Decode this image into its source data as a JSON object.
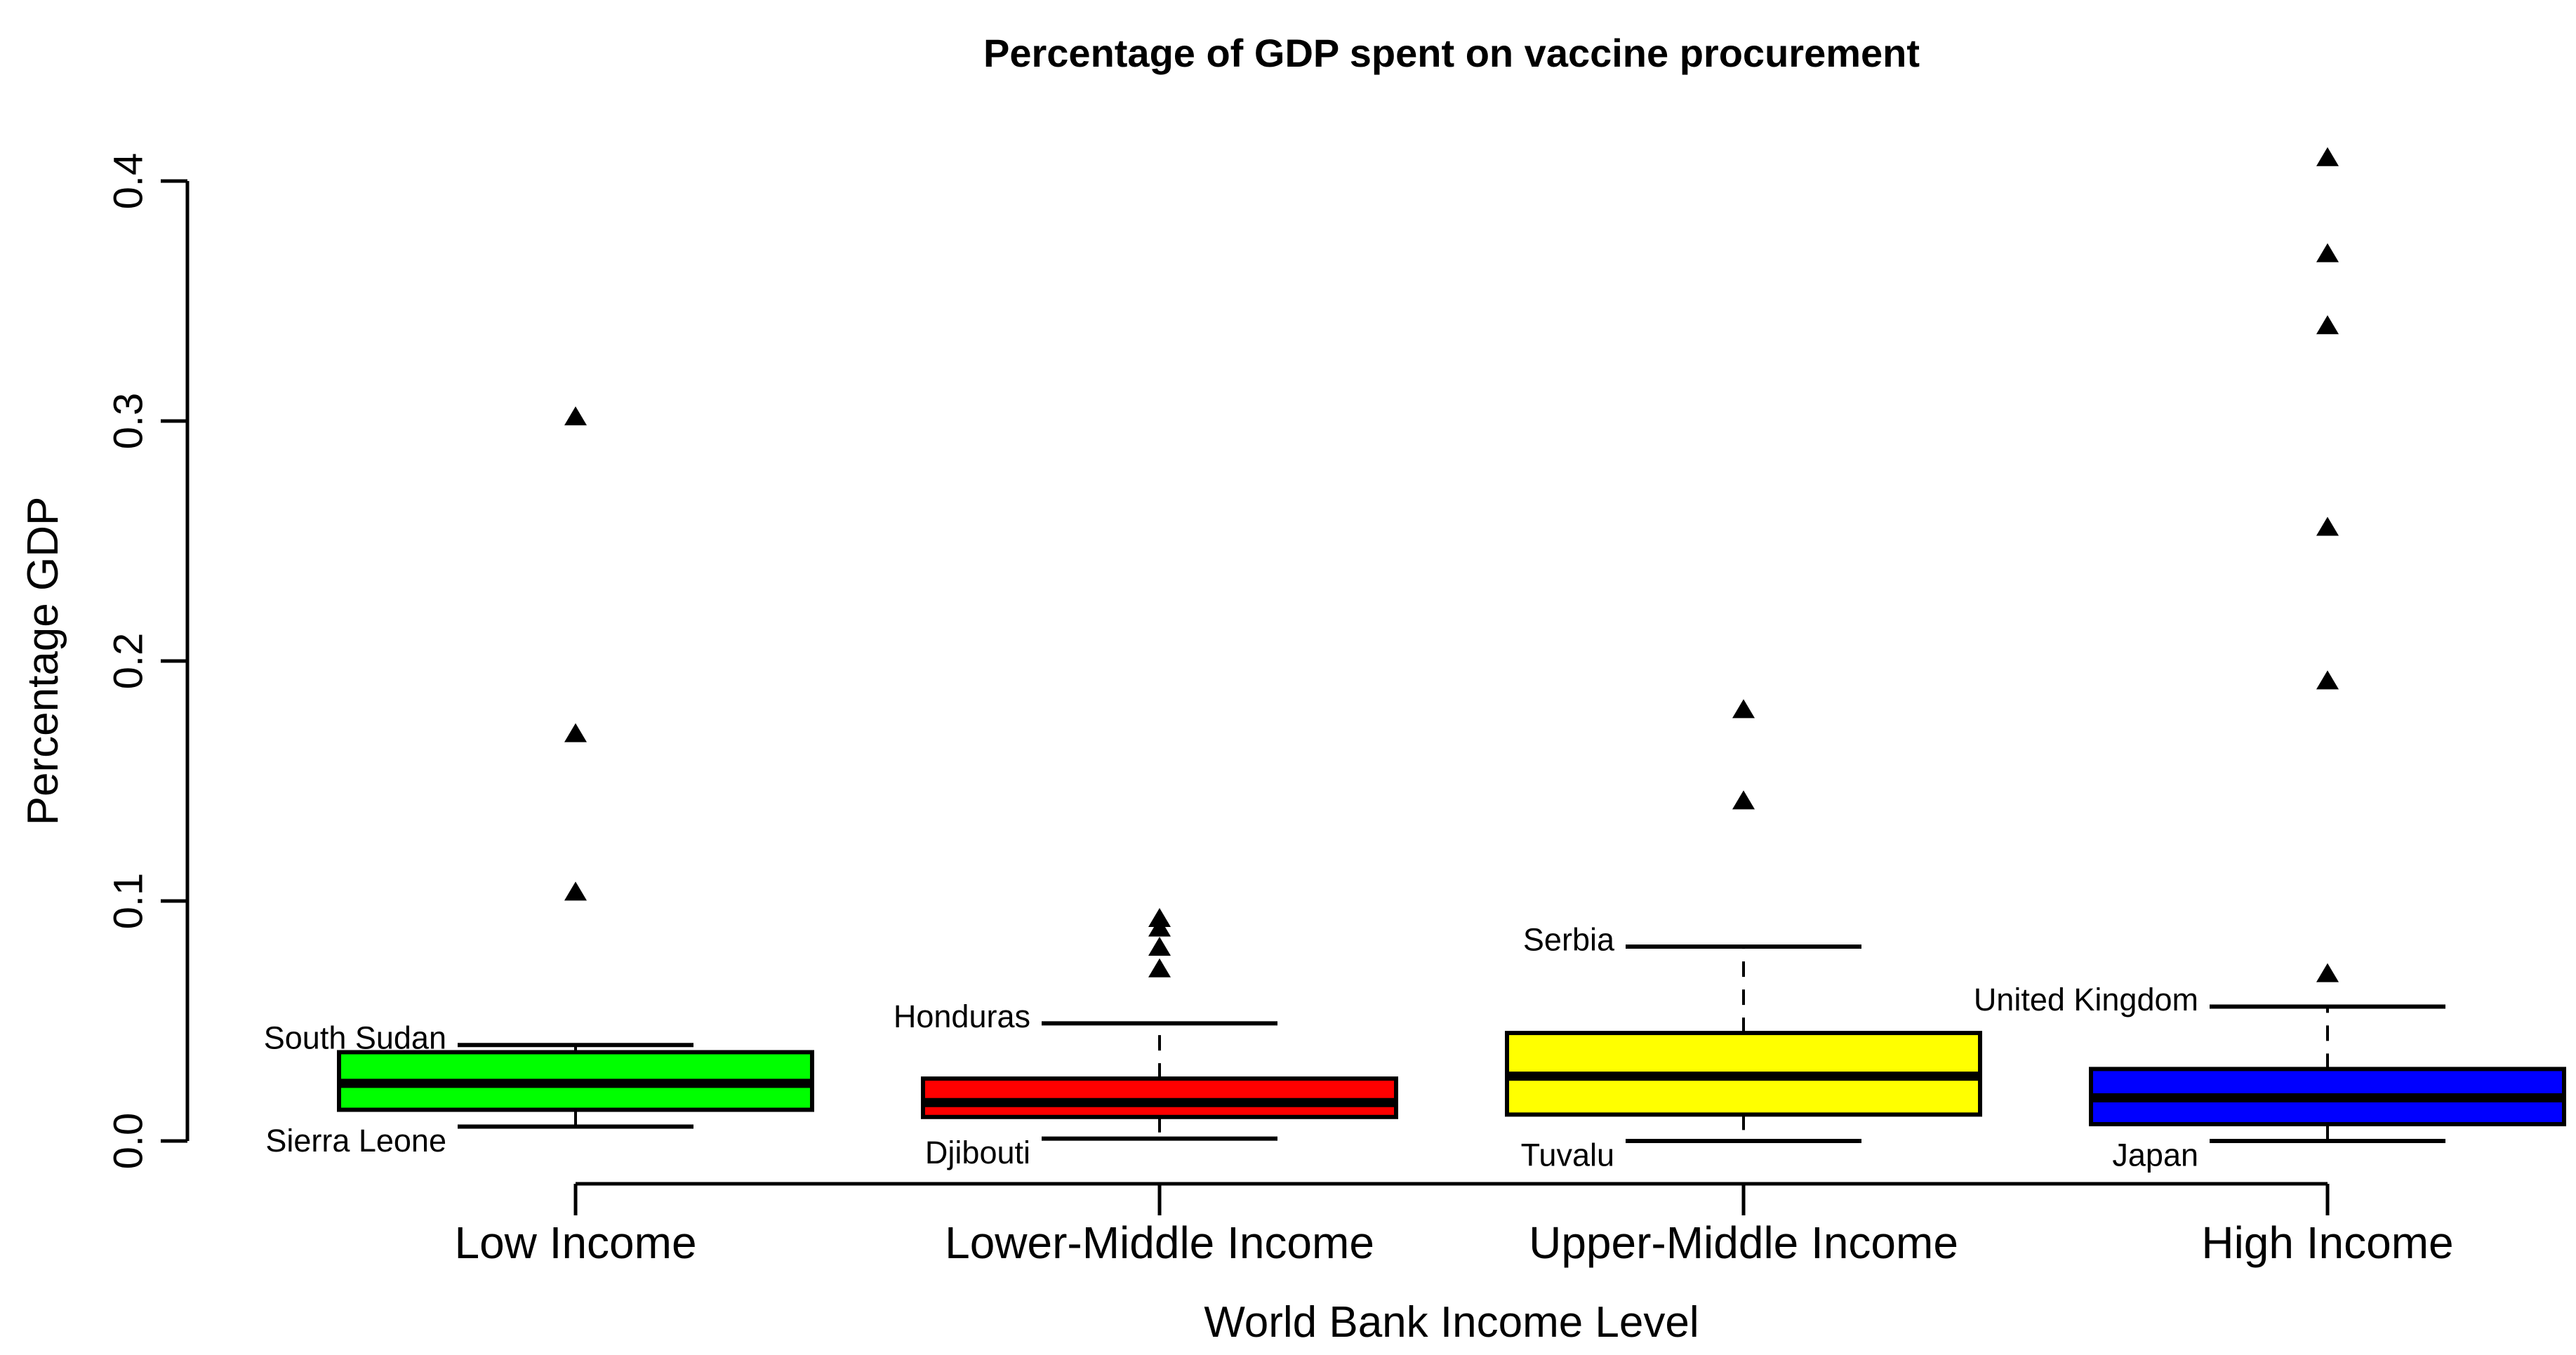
{
  "chart_data": {
    "type": "boxplot",
    "title": "Percentage of GDP spent on vaccine procurement",
    "xlabel": "World Bank Income Level",
    "ylabel": "Percentage GDP",
    "ylim": [
      0.0,
      0.4
    ],
    "y_ticks": [
      {
        "value": 0.0,
        "label": "0.0"
      },
      {
        "value": 0.1,
        "label": "0.1"
      },
      {
        "value": 0.2,
        "label": "0.2"
      },
      {
        "value": 0.3,
        "label": "0.3"
      },
      {
        "value": 0.4,
        "label": "0.4"
      }
    ],
    "grid": false,
    "legend": "none",
    "outlier_marker": "filled-triangle-up",
    "groups": [
      {
        "label": "Low Income",
        "color": "#00FF00",
        "whisker_low": 0.006,
        "q1": 0.013,
        "median": 0.024,
        "q3": 0.037,
        "whisker_high": 0.04,
        "outliers": [
          0.104,
          0.17,
          0.302
        ],
        "annotations": [
          {
            "text": "South Sudan",
            "at": "whisker_high"
          },
          {
            "text": "Sierra Leone",
            "at": "whisker_low"
          }
        ]
      },
      {
        "label": "Lower-Middle Income",
        "color": "#FF0000",
        "whisker_low": 0.001,
        "q1": 0.01,
        "median": 0.016,
        "q3": 0.026,
        "whisker_high": 0.049,
        "outliers": [
          0.072,
          0.081,
          0.089,
          0.093
        ],
        "annotations": [
          {
            "text": "Honduras",
            "at": "whisker_high"
          },
          {
            "text": "Djibouti",
            "at": "whisker_low"
          }
        ]
      },
      {
        "label": "Upper-Middle Income",
        "color": "#FFFF00",
        "whisker_low": 0.0,
        "q1": 0.011,
        "median": 0.027,
        "q3": 0.045,
        "whisker_high": 0.081,
        "outliers": [
          0.142,
          0.18
        ],
        "annotations": [
          {
            "text": "Serbia",
            "at": "whisker_high"
          },
          {
            "text": "Tuvalu",
            "at": "whisker_low"
          }
        ]
      },
      {
        "label": "High Income",
        "color": "#0000FF",
        "whisker_low": 0.0,
        "q1": 0.007,
        "median": 0.018,
        "q3": 0.03,
        "whisker_high": 0.056,
        "outliers": [
          0.07,
          0.192,
          0.256,
          0.34,
          0.37,
          0.41
        ],
        "annotations": [
          {
            "text": "United Kingdom",
            "at": "whisker_high"
          },
          {
            "text": "Japan",
            "at": "whisker_low"
          }
        ]
      }
    ]
  }
}
